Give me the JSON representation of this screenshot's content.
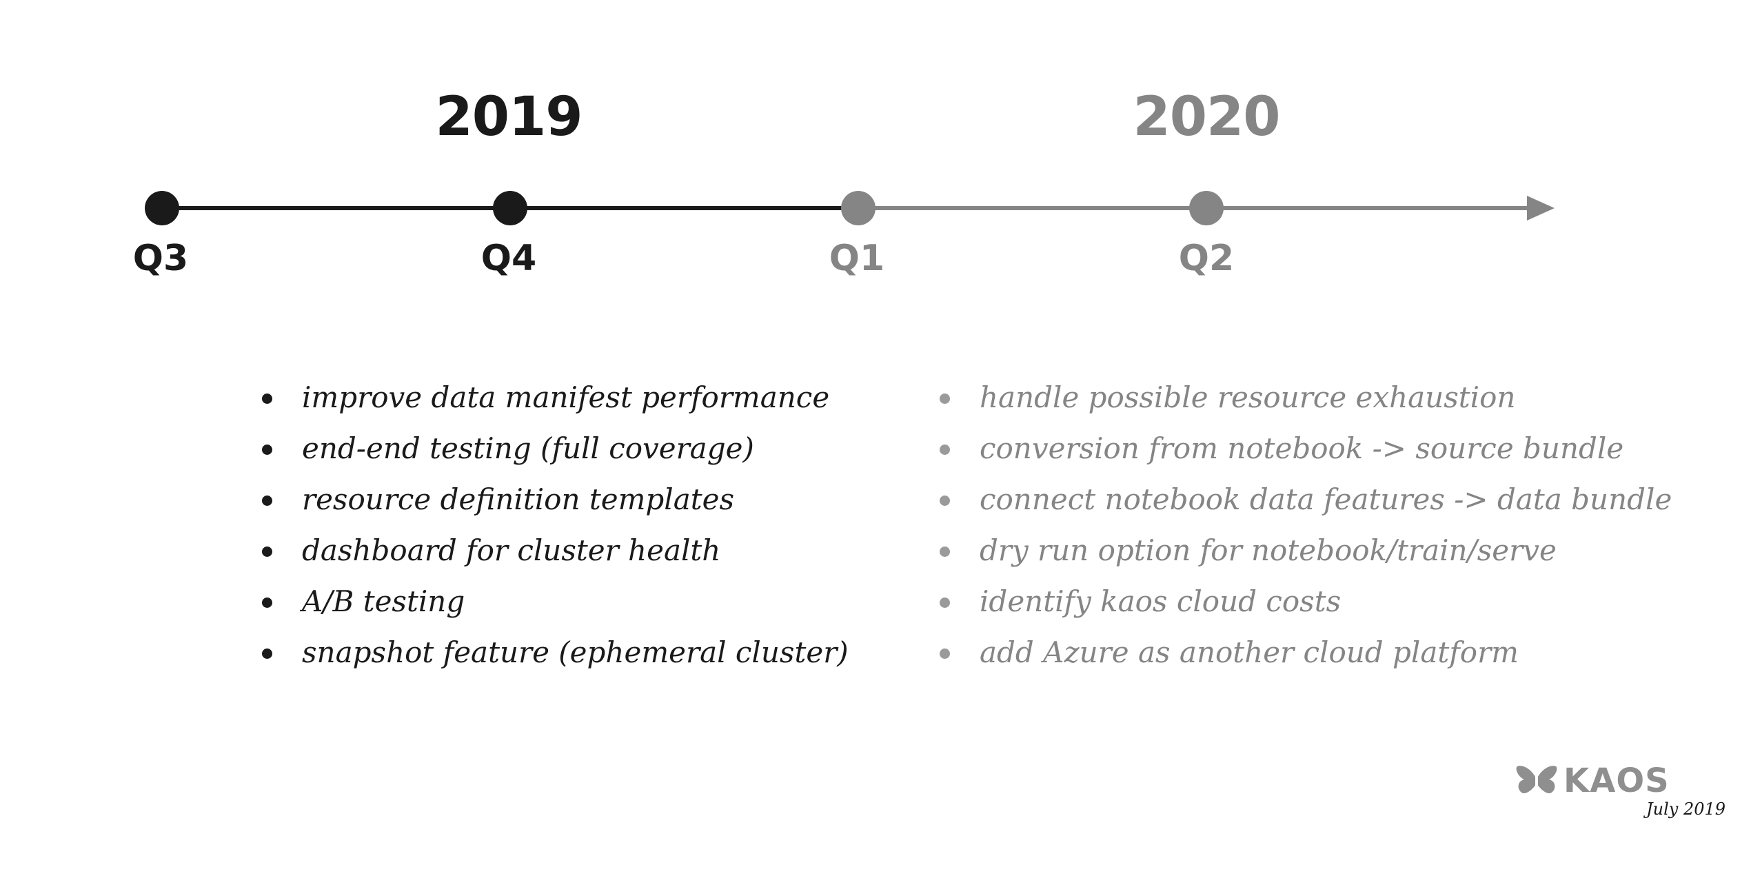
{
  "timeline": {
    "years": [
      {
        "label": "2019",
        "color": "#1a1a1a"
      },
      {
        "label": "2020",
        "color": "#858585"
      }
    ],
    "quarters": [
      {
        "label": "Q3",
        "color": "#1a1a1a"
      },
      {
        "label": "Q4",
        "color": "#1a1a1a"
      },
      {
        "label": "Q1",
        "color": "#858585"
      },
      {
        "label": "Q2",
        "color": "#858585"
      }
    ],
    "past_color": "#1a1a1a",
    "future_color": "#858585"
  },
  "roadmap_2019": {
    "items": [
      "improve data manifest performance",
      "end-end testing (full coverage)",
      "resource definition templates",
      "dashboard for cluster health",
      "A/B testing",
      "snapshot feature (ephemeral cluster)"
    ]
  },
  "roadmap_2020": {
    "items": [
      "handle possible resource exhaustion",
      "conversion from notebook -> source bundle",
      "connect notebook data features -> data bundle",
      "dry run option for notebook/train/serve",
      "identify kaos cloud costs",
      "add Azure as another cloud platform"
    ]
  },
  "footer": {
    "logo_text": "KAOS",
    "logo_icon": "butterfly-icon",
    "date": "July 2019"
  }
}
